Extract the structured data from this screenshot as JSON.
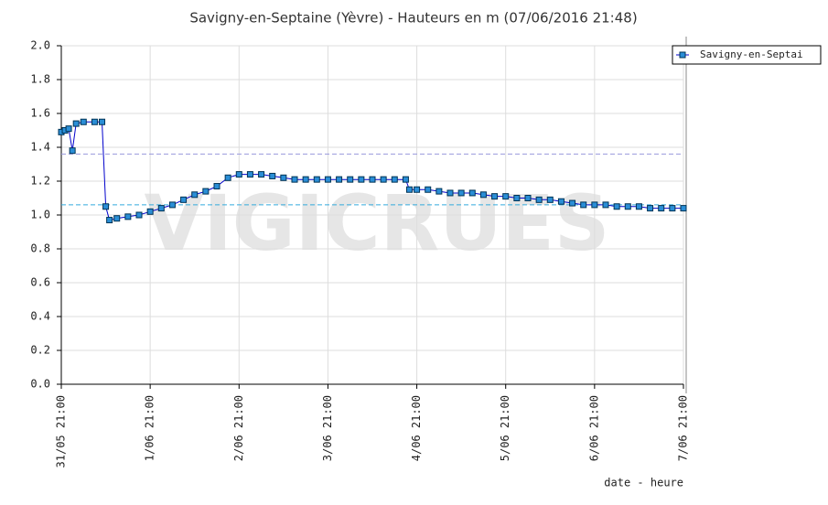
{
  "chart_data": {
    "type": "line",
    "title": "Savigny-en-Septaine (Yèvre) - Hauteurs en m (07/06/2016 21:48)",
    "watermark": "VIGICRUES",
    "x_label": "date - heure",
    "x": [
      "31/05 21:00",
      "31/05 22:00",
      "31/05 23:00",
      "1/06 00:00",
      "1/06 01:00",
      "1/06 03:00",
      "1/06 06:00",
      "1/06 08:00",
      "1/06 09:00",
      "1/06 10:00",
      "1/06 12:00",
      "1/06 15:00",
      "1/06 18:00",
      "1/06 21:00",
      "2/06 00:00",
      "2/06 03:00",
      "2/06 06:00",
      "2/06 09:00",
      "2/06 12:00",
      "2/06 15:00",
      "2/06 18:00",
      "2/06 21:00",
      "3/06 00:00",
      "3/06 03:00",
      "3/06 06:00",
      "3/06 09:00",
      "3/06 12:00",
      "3/06 15:00",
      "3/06 18:00",
      "3/06 21:00",
      "4/06 00:00",
      "4/06 03:00",
      "4/06 06:00",
      "4/06 09:00",
      "4/06 12:00",
      "4/06 15:00",
      "4/06 18:00",
      "4/06 19:00",
      "4/06 21:00",
      "5/06 00:00",
      "5/06 03:00",
      "5/06 06:00",
      "5/06 09:00",
      "5/06 12:00",
      "5/06 15:00",
      "5/06 18:00",
      "5/06 21:00",
      "6/06 00:00",
      "6/06 03:00",
      "6/06 06:00",
      "6/06 09:00",
      "6/06 12:00",
      "6/06 15:00",
      "6/06 18:00",
      "6/06 21:00",
      "7/06 00:00",
      "7/06 03:00",
      "7/06 06:00",
      "7/06 09:00",
      "7/06 12:00",
      "7/06 15:00",
      "7/06 18:00",
      "7/06 21:00"
    ],
    "series": [
      {
        "name": "Savigny-en-Septai",
        "color": "#0000cc",
        "marker_color": "#2a8ed6",
        "values": [
          1.49,
          1.5,
          1.51,
          1.38,
          1.54,
          1.55,
          1.55,
          1.55,
          1.05,
          0.97,
          0.98,
          0.99,
          1.0,
          1.02,
          1.04,
          1.06,
          1.09,
          1.12,
          1.14,
          1.17,
          1.22,
          1.24,
          1.24,
          1.24,
          1.23,
          1.22,
          1.21,
          1.21,
          1.21,
          1.21,
          1.21,
          1.21,
          1.21,
          1.21,
          1.21,
          1.21,
          1.21,
          1.15,
          1.15,
          1.15,
          1.14,
          1.13,
          1.13,
          1.13,
          1.12,
          1.11,
          1.11,
          1.1,
          1.1,
          1.09,
          1.09,
          1.08,
          1.07,
          1.06,
          1.06,
          1.06,
          1.05,
          1.05,
          1.05,
          1.04,
          1.04,
          1.04,
          1.04
        ]
      }
    ],
    "xlim": [
      "31/05 21:00",
      "7/06 21:00"
    ],
    "xticks": [
      "31/05 21:00",
      "1/06 21:00",
      "2/06 21:00",
      "3/06 21:00",
      "4/06 21:00",
      "5/06 21:00",
      "6/06 21:00",
      "7/06 21:00"
    ],
    "ylim": [
      0,
      2
    ],
    "yticks": [
      {
        "value": 0,
        "label": "0.0"
      },
      {
        "value": 0.2,
        "label": "0.2"
      },
      {
        "value": 0.4,
        "label": "0.4"
      },
      {
        "value": 0.6,
        "label": "0.6"
      },
      {
        "value": 0.8,
        "label": "0.8"
      },
      {
        "value": 1,
        "label": "1.0"
      },
      {
        "value": 1.2,
        "label": "1.2"
      },
      {
        "value": 1.4,
        "label": "1.4"
      },
      {
        "value": 1.6,
        "label": "1.6"
      },
      {
        "value": 1.8,
        "label": "1.8"
      },
      {
        "value": 2,
        "label": "2.0"
      }
    ],
    "reference_lines": [
      {
        "value": 1.36,
        "color": "#9999dd"
      },
      {
        "value": 1.06,
        "color": "#33aadd"
      }
    ],
    "grid": true,
    "legend": "top-right"
  }
}
